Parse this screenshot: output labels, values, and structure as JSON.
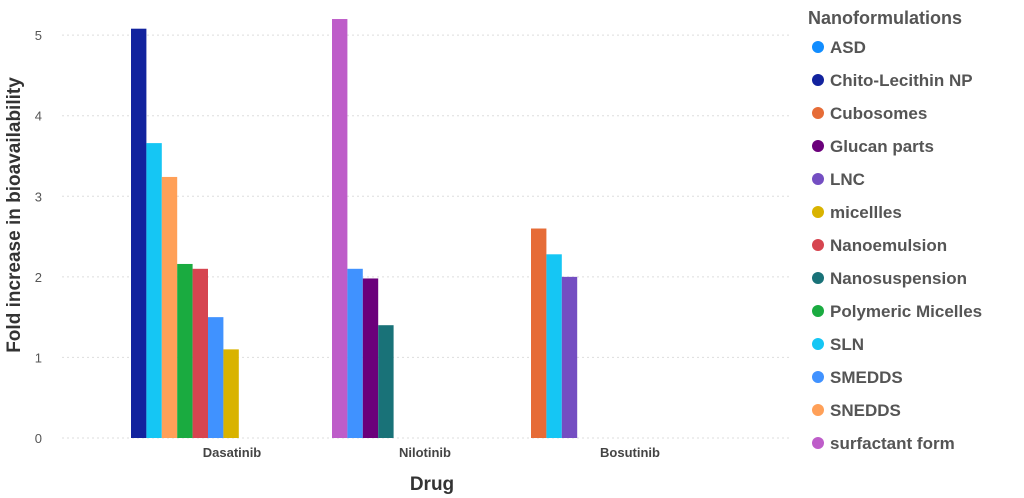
{
  "chart_data": {
    "type": "bar",
    "xlabel": "Drug",
    "ylabel": "Fold increase in bioavailability",
    "ylim": [
      0,
      5.25
    ],
    "yticks": [
      0,
      1,
      2,
      3,
      4,
      5
    ],
    "grid": true,
    "legend_title": "Nanoformulations",
    "legend_position": "right",
    "categories": [
      "Dasatinib",
      "Nilotinib",
      "Bosutinib"
    ],
    "series_defs": [
      {
        "name": "ASD",
        "color": "#118DFF"
      },
      {
        "name": "Chito-Lecithin NP",
        "color": "#12239E"
      },
      {
        "name": "Cubosomes",
        "color": "#E66C37"
      },
      {
        "name": "Glucan parts",
        "color": "#6B007B"
      },
      {
        "name": "LNC",
        "color": "#744EC2"
      },
      {
        "name": "micellles",
        "color": "#D9B300"
      },
      {
        "name": "Nanoemulsion",
        "color": "#D64550"
      },
      {
        "name": "Nanosuspension",
        "color": "#197278"
      },
      {
        "name": "Polymeric Micelles",
        "color": "#1AAB40"
      },
      {
        "name": "SLN",
        "color": "#15C6F4"
      },
      {
        "name": "SMEDDS",
        "color": "#4092FF"
      },
      {
        "name": "SNEDDS",
        "color": "#FFA058"
      },
      {
        "name": "surfactant form",
        "color": "#BE5DC9"
      }
    ],
    "groups": [
      {
        "category": "Dasatinib",
        "bars": [
          {
            "series": "Chito-Lecithin NP",
            "value": 5.08
          },
          {
            "series": "SLN",
            "value": 3.66
          },
          {
            "series": "SNEDDS",
            "value": 3.24
          },
          {
            "series": "Polymeric Micelles",
            "value": 2.16
          },
          {
            "series": "Nanoemulsion",
            "value": 2.1
          },
          {
            "series": "SMEDDS",
            "value": 1.5
          },
          {
            "series": "micellles",
            "value": 1.1
          }
        ]
      },
      {
        "category": "Nilotinib",
        "bars": [
          {
            "series": "surfactant form",
            "value": 5.2
          },
          {
            "series": "SMEDDS",
            "value": 2.1
          },
          {
            "series": "Glucan parts",
            "value": 1.98
          },
          {
            "series": "Nanosuspension",
            "value": 1.4
          }
        ]
      },
      {
        "category": "Bosutinib",
        "bars": [
          {
            "series": "Cubosomes",
            "value": 2.6
          },
          {
            "series": "SLN",
            "value": 2.28
          },
          {
            "series": "LNC",
            "value": 2.0
          }
        ]
      }
    ]
  }
}
